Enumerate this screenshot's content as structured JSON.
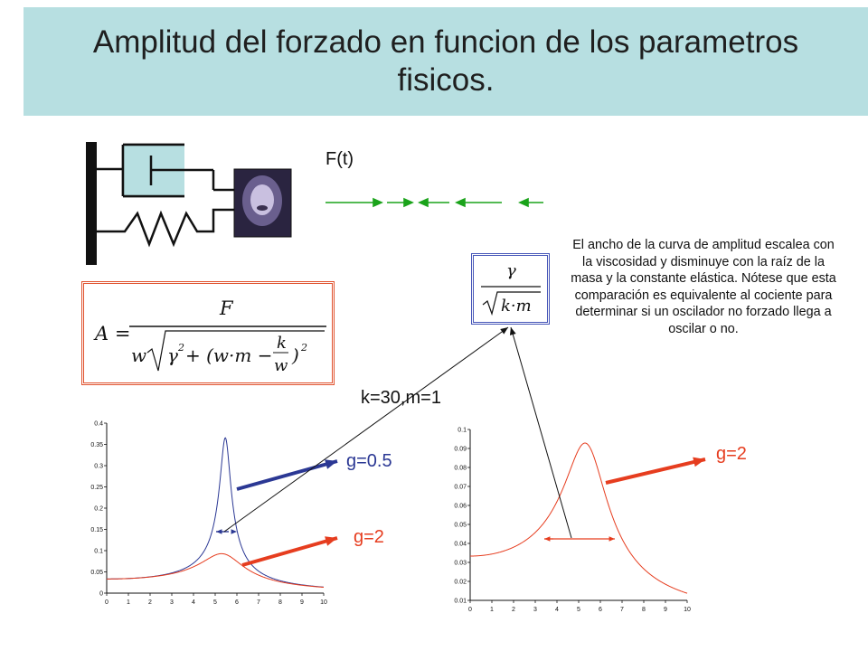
{
  "title": {
    "line1": "Amplitud del forzado en funcion de los parametros",
    "line2": "fisicos."
  },
  "force_label": "F(t)",
  "params_label": "k=30,m=1",
  "curve_labels": {
    "g_low": "g=0.5",
    "g_high_left": "g=2",
    "g_high_right": "g=2"
  },
  "note": "El ancho de la curva de amplitud escalea con la viscosidad y disminuye con la raíz de la masa y la constante elástica. Nótese que esta comparación es equivalente al cociente para determinar si un oscilador no forzado llega a oscilar o no.",
  "formula": {
    "lhs": "A =",
    "numerator": "F",
    "denominator": "w√(γ² + (w·m − k/w)²)"
  },
  "ratio": {
    "numerator": "γ",
    "denominator": "√(k·m)"
  },
  "colors": {
    "title_bg": "#b7dfe1",
    "g_low": "#2b3894",
    "g_high": "#e63d1f",
    "arrow_green": "#1aa31a",
    "damper_fill": "#b7dfe1"
  },
  "chart_data": [
    {
      "type": "line",
      "xlim": [
        0,
        10
      ],
      "ylim": [
        0,
        0.4
      ],
      "x_ticks": [
        "0",
        "1",
        "2",
        "3",
        "4",
        "5",
        "6",
        "7",
        "8",
        "9",
        "10"
      ],
      "y_ticks": [
        "0",
        "0.05",
        "0.1",
        "0.15",
        "0.2",
        "0.25",
        "0.3",
        "0.35",
        "0.4"
      ],
      "series": [
        {
          "name": "g=0.5",
          "color": "#2b3894",
          "params": {
            "k": 30,
            "m": 1,
            "g": 0.5
          }
        },
        {
          "name": "g=2",
          "color": "#e63d1f",
          "params": {
            "k": 30,
            "m": 1,
            "g": 2
          }
        }
      ]
    },
    {
      "type": "line",
      "xlim": [
        0,
        10
      ],
      "ylim": [
        0.01,
        0.1
      ],
      "x_ticks": [
        "0",
        "1",
        "2",
        "3",
        "4",
        "5",
        "6",
        "7",
        "8",
        "9",
        "10"
      ],
      "y_ticks": [
        "0.01",
        "0.02",
        "0.03",
        "0.04",
        "0.05",
        "0.06",
        "0.07",
        "0.08",
        "0.09",
        "0.1"
      ],
      "series": [
        {
          "name": "g=2",
          "color": "#e63d1f",
          "params": {
            "k": 30,
            "m": 1,
            "g": 2
          }
        }
      ]
    }
  ]
}
